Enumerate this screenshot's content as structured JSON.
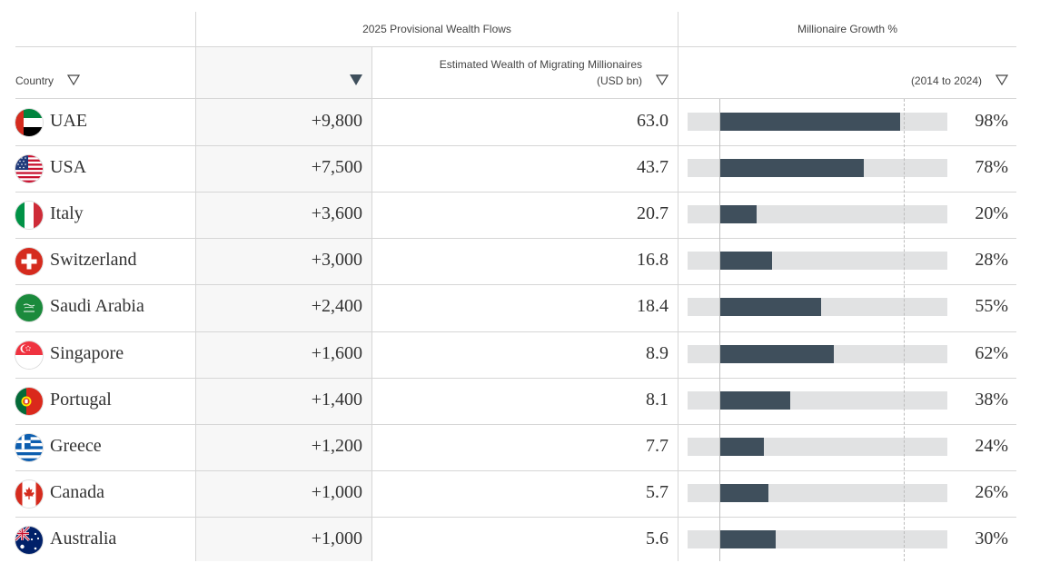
{
  "header": {
    "group_flows": "2025 Provisional Wealth Flows",
    "group_growth": "Millionaire Growth %",
    "col_country": "Country",
    "col_wealth_line1": "Estimated Wealth of Migrating Millionaires",
    "col_wealth_line2": "(USD bn)",
    "col_growth_sub": "(2014 to 2024)"
  },
  "colors": {
    "bar": "#3f4f5c",
    "bar_track": "#e1e2e3",
    "sorted_column_bg": "#f7f7f7"
  },
  "chart_data": {
    "type": "table",
    "columns": [
      "Country",
      "",
      "Estimated Wealth of Migrating Millionaires (USD bn)",
      "Millionaire Growth % (2014 to 2024)"
    ],
    "bar_scale_max": 100,
    "rows": [
      {
        "country": "UAE",
        "flag": "flag-uae-icon",
        "flow": "+9,800",
        "wealth": "63.0",
        "growth": 98,
        "growth_label": "98%"
      },
      {
        "country": "USA",
        "flag": "flag-usa-icon",
        "flow": "+7,500",
        "wealth": "43.7",
        "growth": 78,
        "growth_label": "78%"
      },
      {
        "country": "Italy",
        "flag": "flag-italy-icon",
        "flow": "+3,600",
        "wealth": "20.7",
        "growth": 20,
        "growth_label": "20%"
      },
      {
        "country": "Switzerland",
        "flag": "flag-switzerland-icon",
        "flow": "+3,000",
        "wealth": "16.8",
        "growth": 28,
        "growth_label": "28%"
      },
      {
        "country": "Saudi Arabia",
        "flag": "flag-saudi-arabia-icon",
        "flow": "+2,400",
        "wealth": "18.4",
        "growth": 55,
        "growth_label": "55%"
      },
      {
        "country": "Singapore",
        "flag": "flag-singapore-icon",
        "flow": "+1,600",
        "wealth": "8.9",
        "growth": 62,
        "growth_label": "62%"
      },
      {
        "country": "Portugal",
        "flag": "flag-portugal-icon",
        "flow": "+1,400",
        "wealth": "8.1",
        "growth": 38,
        "growth_label": "38%"
      },
      {
        "country": "Greece",
        "flag": "flag-greece-icon",
        "flow": "+1,200",
        "wealth": "7.7",
        "growth": 24,
        "growth_label": "24%"
      },
      {
        "country": "Canada",
        "flag": "flag-canada-icon",
        "flow": "+1,000",
        "wealth": "5.7",
        "growth": 26,
        "growth_label": "26%"
      },
      {
        "country": "Australia",
        "flag": "flag-australia-icon",
        "flow": "+1,000",
        "wealth": "5.6",
        "growth": 30,
        "growth_label": "30%"
      }
    ]
  }
}
